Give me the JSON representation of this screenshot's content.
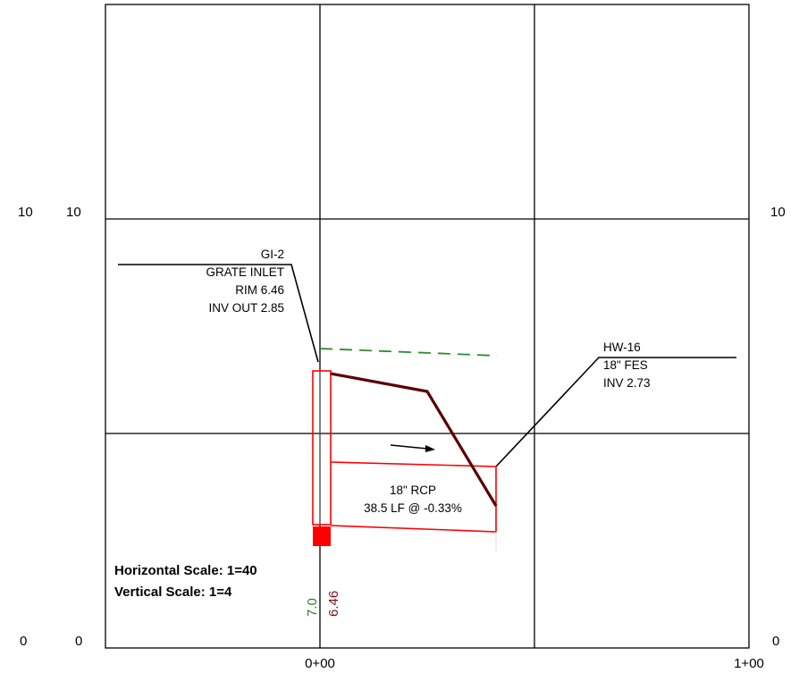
{
  "axis": {
    "left_outer_top": "10",
    "left_inner_top": "10",
    "right_top": "10",
    "left_outer_bottom": "0",
    "left_inner_bottom": "0",
    "right_bottom": "0",
    "station_start": "0+00",
    "station_end": "1+00"
  },
  "inlet": {
    "name": "GI-2",
    "type": "GRATE INLET",
    "rim": "RIM 6.46",
    "inv": "INV OUT 2.85"
  },
  "headwall": {
    "name": "HW-16",
    "type": "18\" FES",
    "inv": "INV 2.73"
  },
  "pipe": {
    "size": "18\" RCP",
    "length_slope": "38.5 LF @ -0.33%"
  },
  "scales": {
    "horizontal": "Horizontal Scale: 1=40",
    "vertical": "Vertical Scale: 1=4"
  },
  "station_labels": {
    "ground": "7.0",
    "rim": "6.46"
  },
  "colors": {
    "grid": "#000000",
    "structure": "#ff0000",
    "profile": "#5a0000",
    "proposed": "#2e8b2e",
    "rim_label": "#7a1010",
    "ground_label": "#2e7d2e"
  }
}
